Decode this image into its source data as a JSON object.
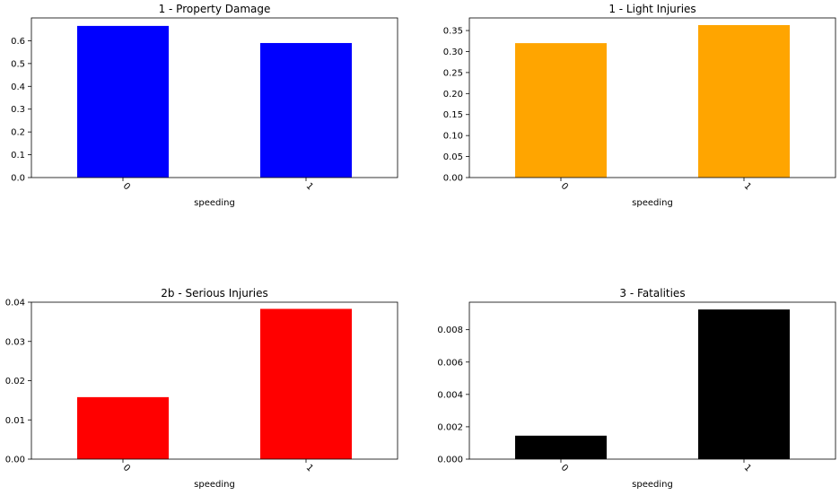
{
  "chart_data": [
    {
      "type": "bar",
      "title": "1 - Property Damage",
      "xlabel": "speeding",
      "ylabel": "",
      "categories": [
        "0",
        "1"
      ],
      "values": [
        0.665,
        0.59
      ],
      "ylim": [
        0,
        0.7
      ],
      "yticks": [
        0.0,
        0.1,
        0.2,
        0.3,
        0.4,
        0.5,
        0.6
      ],
      "ytick_labels": [
        "0.0",
        "0.1",
        "0.2",
        "0.3",
        "0.4",
        "0.5",
        "0.6"
      ],
      "color": "#0000ff",
      "grid": false,
      "legend": "none"
    },
    {
      "type": "bar",
      "title": "1 - Light Injuries",
      "xlabel": "speeding",
      "ylabel": "",
      "categories": [
        "0",
        "1"
      ],
      "values": [
        0.32,
        0.363
      ],
      "ylim": [
        0,
        0.38
      ],
      "yticks": [
        0.0,
        0.05,
        0.1,
        0.15,
        0.2,
        0.25,
        0.3,
        0.35
      ],
      "ytick_labels": [
        "0.00",
        "0.05",
        "0.10",
        "0.15",
        "0.20",
        "0.25",
        "0.30",
        "0.35"
      ],
      "color": "#ffa500",
      "grid": false,
      "legend": "none"
    },
    {
      "type": "bar",
      "title": "2b - Serious Injuries",
      "xlabel": "speeding",
      "ylabel": "",
      "categories": [
        "0",
        "1"
      ],
      "values": [
        0.0158,
        0.0383
      ],
      "ylim": [
        0,
        0.04
      ],
      "yticks": [
        0.0,
        0.01,
        0.02,
        0.03,
        0.04
      ],
      "ytick_labels": [
        "0.00",
        "0.01",
        "0.02",
        "0.03",
        "0.04"
      ],
      "color": "#ff0000",
      "grid": false,
      "legend": "none"
    },
    {
      "type": "bar",
      "title": "3 - Fatalities",
      "xlabel": "speeding",
      "ylabel": "",
      "categories": [
        "0",
        "1"
      ],
      "values": [
        0.00145,
        0.00925
      ],
      "ylim": [
        0,
        0.0097
      ],
      "yticks": [
        0.0,
        0.002,
        0.004,
        0.006,
        0.008
      ],
      "ytick_labels": [
        "0.000",
        "0.002",
        "0.004",
        "0.006",
        "0.008"
      ],
      "color": "#000000",
      "grid": false,
      "legend": "none"
    }
  ]
}
